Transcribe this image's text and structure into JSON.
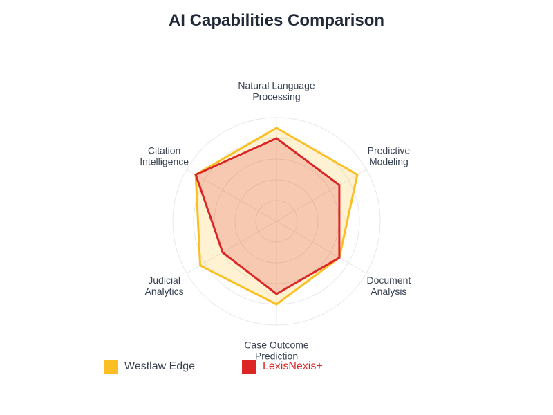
{
  "chart_data": {
    "type": "radar",
    "title": "AI Capabilities Comparison",
    "axes": [
      [
        "Natural Language",
        "Processing"
      ],
      [
        "Predictive",
        "Modeling"
      ],
      [
        "Document",
        "Analysis"
      ],
      [
        "Case Outcome",
        "Prediction"
      ],
      [
        "Judicial",
        "Analytics"
      ],
      [
        "Citation",
        "Intelligence"
      ]
    ],
    "rlim": [
      0,
      100
    ],
    "grid": true,
    "series": [
      {
        "name": "Westlaw Edge",
        "color": "#fbbf24",
        "values": [
          90,
          90,
          70,
          80,
          85,
          90
        ]
      },
      {
        "name": "LexisNexis+",
        "color": "#dc2626",
        "values": [
          80,
          70,
          70,
          70,
          60,
          90
        ]
      }
    ],
    "legend_position": "bottom-left"
  },
  "legend": {
    "items": [
      {
        "label": "Westlaw Edge",
        "color": "#fbbf24",
        "text_color": "#374151"
      },
      {
        "label": "LexisNexis+",
        "color": "#dc2626",
        "text_color": "#dc2626"
      }
    ]
  }
}
